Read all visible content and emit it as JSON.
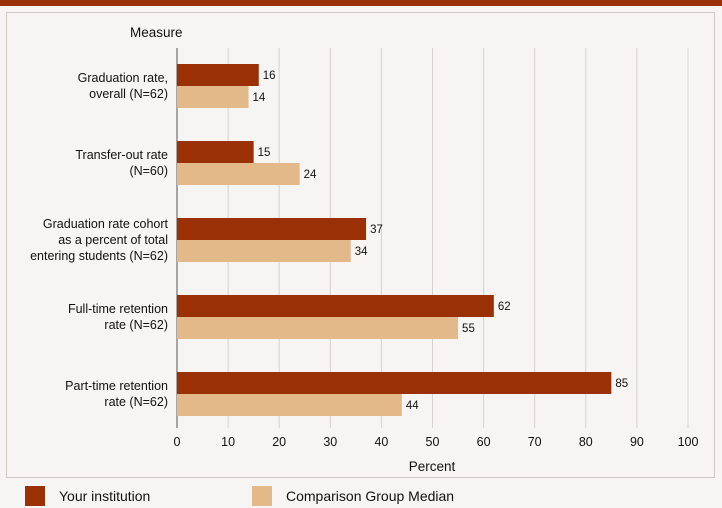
{
  "chart_data": {
    "type": "bar",
    "orientation": "horizontal",
    "title": "",
    "ylabel": "Measure",
    "xlabel": "Percent",
    "xlim": [
      0,
      100
    ],
    "xticks": [
      0,
      10,
      20,
      30,
      40,
      50,
      60,
      70,
      80,
      90,
      100
    ],
    "categories": [
      [
        "Graduation rate,",
        "overall (N=62)"
      ],
      [
        "Transfer-out rate",
        "(N=60)"
      ],
      [
        "Graduation rate cohort",
        "as a percent of total",
        "entering students (N=62)"
      ],
      [
        "Full-time retention",
        "rate (N=62)"
      ],
      [
        "Part-time retention",
        "rate (N=62)"
      ]
    ],
    "series": [
      {
        "name": "Your institution",
        "color": "#9a3006",
        "values": [
          16,
          15,
          37,
          62,
          85
        ]
      },
      {
        "name": "Comparison Group Median",
        "color": "#e4b98a",
        "values": [
          14,
          24,
          34,
          55,
          44
        ]
      }
    ],
    "grid": true,
    "legend": "bottom"
  }
}
